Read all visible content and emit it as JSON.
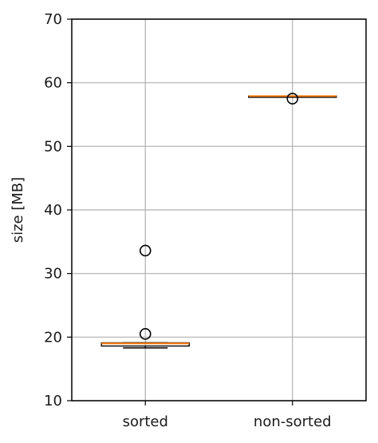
{
  "chart_data": {
    "type": "box",
    "categories": [
      "sorted",
      "non-sorted"
    ],
    "ylabel": "size [MB]",
    "xlabel": "",
    "title": "",
    "ylim": [
      10,
      70
    ],
    "yticks": [
      10,
      20,
      30,
      40,
      50,
      60,
      70
    ],
    "grid": true,
    "boxes": [
      {
        "category": "sorted",
        "whisker_low": 18.3,
        "q1": 18.6,
        "median": 19.0,
        "q3": 19.1,
        "whisker_high": 19.1,
        "outliers": [
          20.5,
          33.6
        ]
      },
      {
        "category": "non-sorted",
        "whisker_low": 57.8,
        "q1": 57.8,
        "median": 57.9,
        "q3": 57.9,
        "whisker_high": 57.9,
        "outliers": [
          57.5
        ]
      }
    ],
    "colors": {
      "median": "#ff7f0e",
      "box": "#000000",
      "grid": "#b0b0b0",
      "outlier_edge": "#000000"
    }
  }
}
